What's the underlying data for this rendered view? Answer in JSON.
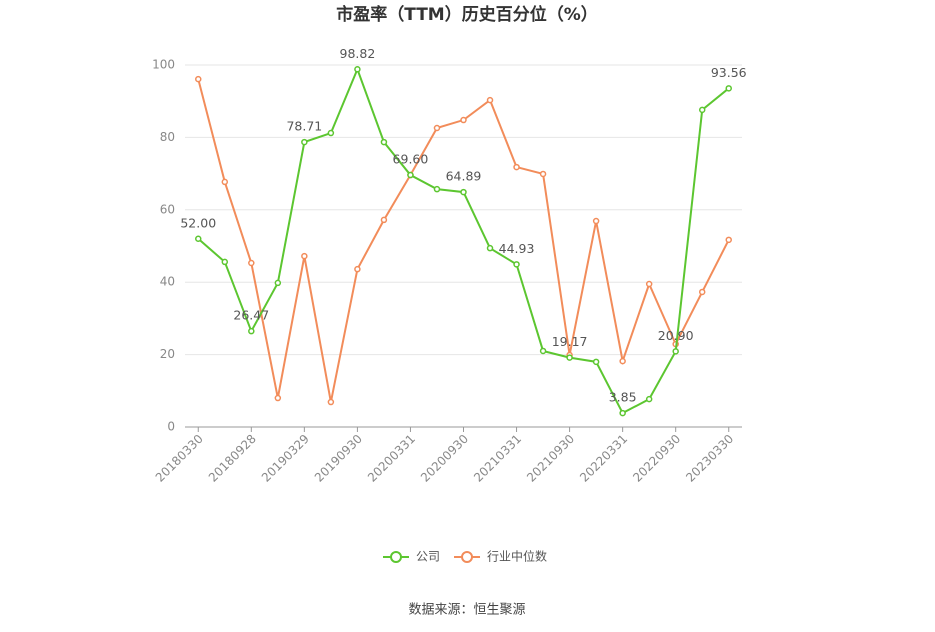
{
  "chart_data": {
    "type": "line",
    "title": "市盈率（TTM）历史百分位（%）",
    "note": "数据来源：恒生聚源",
    "categories": [
      "20180330",
      null,
      "20180928",
      null,
      "20190329",
      null,
      "20190930",
      null,
      "20200331",
      null,
      "20200930",
      null,
      "20210331",
      null,
      "20210930",
      null,
      "20220331",
      null,
      "20220930",
      null,
      "20230330"
    ],
    "series": [
      {
        "name": "公司",
        "color": "#5cc630",
        "values": [
          52.0,
          45.6,
          26.47,
          39.8,
          78.71,
          81.2,
          98.82,
          78.7,
          69.6,
          65.7,
          64.89,
          49.4,
          44.93,
          21.0,
          19.17,
          18.0,
          3.85,
          7.7,
          20.9,
          87.6,
          93.56
        ],
        "value_labels": [
          "52.00",
          null,
          "26.47",
          null,
          "78.71",
          null,
          "98.82",
          null,
          "69.60",
          null,
          "64.89",
          null,
          "44.93",
          null,
          "19.17",
          null,
          "3.85",
          null,
          "20.90",
          null,
          "93.56"
        ]
      },
      {
        "name": "行业中位数",
        "color": "#f28c5a",
        "values": [
          96.1,
          67.7,
          45.3,
          8.0,
          47.2,
          6.9,
          43.6,
          57.2,
          69.6,
          82.6,
          84.8,
          90.3,
          71.8,
          69.9,
          19.9,
          56.9,
          18.2,
          39.5,
          22.9,
          37.3,
          51.7
        ]
      }
    ],
    "ylim": [
      0,
      100
    ],
    "yticks": [
      0,
      20,
      40,
      60,
      80,
      100
    ],
    "grid": true,
    "legend": "bottom"
  }
}
